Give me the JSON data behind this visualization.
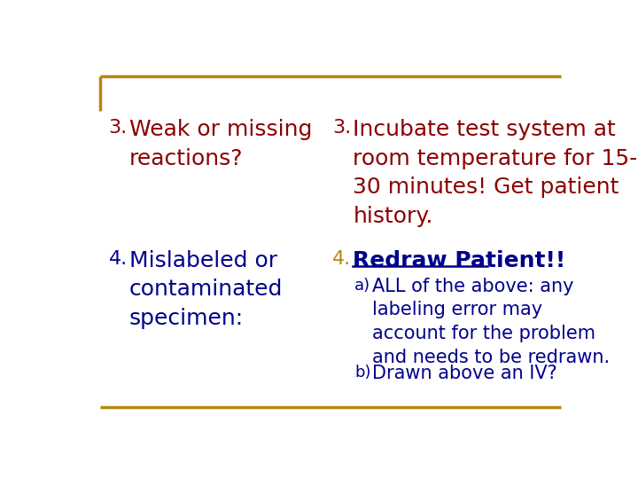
{
  "bg_color": "#ffffff",
  "border_color": "#b8860b",
  "left_col": {
    "item3_num": "3.",
    "item3_text": "Weak or missing\nreactions?",
    "item3_color": "#8b0000",
    "item4_num": "4.",
    "item4_text": "Mislabeled or\ncontaminated\nspecimen:",
    "item4_color": "#00008b"
  },
  "right_col": {
    "item3_num": "3.",
    "item3_text": "Incubate test system at\nroom temperature for 15-\n30 minutes! Get patient\nhistory.",
    "item3_color": "#8b0000",
    "item4_num": "4.",
    "item4_num_color": "#b8860b",
    "item4_title": "Redraw Patient!!",
    "item4_title_color": "#00008b",
    "item4a_label": "a)",
    "item4a_text": "ALL of the above: any\nlabeling error may\naccount for the problem\nand needs to be redrawn.",
    "item4a_color": "#00008b",
    "item4b_label": "b)",
    "item4b_text": "Drawn above an IV?",
    "item4b_color": "#00008b"
  },
  "font_size_main": 18,
  "font_size_num": 16,
  "font_size_sub": 15,
  "font_family": "DejaVu Sans"
}
